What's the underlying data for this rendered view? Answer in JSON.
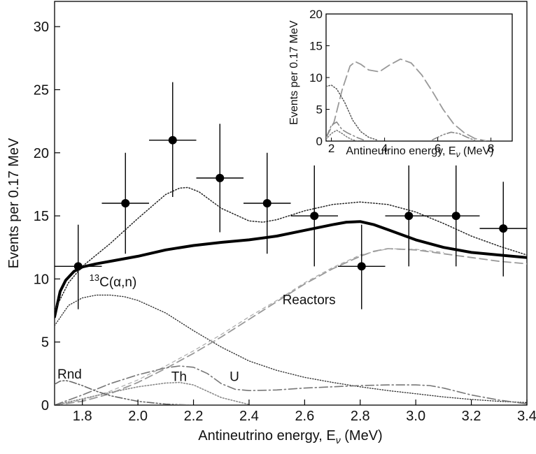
{
  "chart_data": [
    {
      "type": "line",
      "role": "main",
      "xlabel": "Antineutrino energy, E",
      "xlabel_sub": "ν",
      "xlabel_unit": "(MeV)",
      "ylabel": "Events per 0.17 MeV",
      "xlim": [
        1.7,
        3.4
      ],
      "ylim": [
        0,
        32
      ],
      "xticks": [
        "1.8",
        "2.0",
        "2.2",
        "2.4",
        "2.6",
        "2.8",
        "3.0",
        "3.2",
        "3.4"
      ],
      "yticks": [
        "0",
        "5",
        "10",
        "15",
        "20",
        "25",
        "30"
      ],
      "grid": false,
      "annotations": [
        {
          "text": "C(α,n)",
          "sup": "13",
          "x": 1.825,
          "y": 9.4
        },
        {
          "text": "Reactors",
          "x": 2.52,
          "y": 8.0
        },
        {
          "text": "Rnd",
          "x": 1.71,
          "y": 2.1
        },
        {
          "text": "Th",
          "x": 2.12,
          "y": 1.9
        },
        {
          "text": "U",
          "x": 2.33,
          "y": 1.9
        }
      ],
      "data_points": [
        {
          "x": 1.785,
          "y": 11,
          "xerr": 0.085,
          "ylo": 7.6,
          "yhi": 14.3
        },
        {
          "x": 1.955,
          "y": 16,
          "xerr": 0.085,
          "ylo": 12.0,
          "yhi": 20.0
        },
        {
          "x": 2.125,
          "y": 21,
          "xerr": 0.085,
          "ylo": 16.5,
          "yhi": 25.6
        },
        {
          "x": 2.295,
          "y": 18,
          "xerr": 0.085,
          "ylo": 13.7,
          "yhi": 22.3
        },
        {
          "x": 2.465,
          "y": 16,
          "xerr": 0.085,
          "ylo": 12.0,
          "yhi": 20.0
        },
        {
          "x": 2.635,
          "y": 15,
          "xerr": 0.085,
          "ylo": 11.0,
          "yhi": 19.0
        },
        {
          "x": 2.805,
          "y": 11,
          "xerr": 0.085,
          "ylo": 7.6,
          "yhi": 14.3
        },
        {
          "x": 2.975,
          "y": 15,
          "xerr": 0.085,
          "ylo": 11.0,
          "yhi": 19.0
        },
        {
          "x": 3.145,
          "y": 15,
          "xerr": 0.085,
          "ylo": 11.0,
          "yhi": 19.0
        },
        {
          "x": 3.315,
          "y": 14,
          "xerr": 0.085,
          "ylo": 10.2,
          "yhi": 17.7
        }
      ],
      "series": [
        {
          "key": "best_fit",
          "color": "#000000",
          "style": "thick",
          "x": [
            1.7,
            1.72,
            1.74,
            1.77,
            1.8,
            1.85,
            1.9,
            2.0,
            2.1,
            2.2,
            2.3,
            2.4,
            2.5,
            2.6,
            2.7,
            2.75,
            2.8,
            2.85,
            2.9,
            3.0,
            3.1,
            3.2,
            3.3,
            3.4
          ],
          "y": [
            7.0,
            9.0,
            9.9,
            10.6,
            10.95,
            11.2,
            11.4,
            11.8,
            12.3,
            12.65,
            12.9,
            13.1,
            13.4,
            13.85,
            14.3,
            14.5,
            14.55,
            14.3,
            13.9,
            13.1,
            12.5,
            12.1,
            11.9,
            11.7
          ]
        },
        {
          "key": "total_dotted",
          "color": "#222222",
          "style": "dotted",
          "x": [
            1.7,
            1.75,
            1.8,
            1.9,
            2.0,
            2.1,
            2.15,
            2.18,
            2.22,
            2.3,
            2.4,
            2.45,
            2.5,
            2.6,
            2.7,
            2.8,
            2.9,
            3.0,
            3.1,
            3.2,
            3.3,
            3.4
          ],
          "y": [
            7.5,
            9.7,
            11.0,
            12.8,
            14.8,
            16.7,
            17.2,
            17.25,
            16.9,
            15.6,
            14.6,
            14.5,
            14.7,
            15.4,
            15.9,
            16.1,
            15.9,
            15.3,
            14.4,
            13.4,
            12.6,
            11.9
          ]
        },
        {
          "key": "c13",
          "color": "#333333",
          "style": "fine-dotted",
          "x": [
            1.7,
            1.75,
            1.8,
            1.85,
            1.9,
            1.95,
            2.0,
            2.1,
            2.2,
            2.3,
            2.4,
            2.5,
            2.6,
            2.7,
            2.8,
            2.9,
            3.0,
            3.1,
            3.2,
            3.3,
            3.4
          ],
          "y": [
            6.3,
            7.9,
            8.5,
            8.72,
            8.72,
            8.6,
            8.3,
            7.3,
            5.9,
            4.6,
            3.5,
            2.75,
            2.2,
            1.8,
            1.45,
            1.15,
            0.9,
            0.65,
            0.45,
            0.3,
            0.2
          ]
        },
        {
          "key": "reactors",
          "color": "#999999",
          "style": "dashed",
          "x": [
            1.7,
            1.8,
            1.9,
            2.0,
            2.1,
            2.2,
            2.3,
            2.4,
            2.5,
            2.6,
            2.7,
            2.8,
            2.85,
            2.9,
            3.0,
            3.1,
            3.2,
            3.3,
            3.4
          ],
          "y": [
            0.0,
            0.3,
            0.9,
            1.8,
            2.9,
            4.1,
            5.4,
            6.8,
            8.2,
            9.6,
            10.8,
            11.8,
            12.2,
            12.4,
            12.3,
            12.0,
            11.7,
            11.4,
            11.2
          ]
        },
        {
          "key": "reactors_thin",
          "color": "#aaaaaa",
          "style": "dashed-thin",
          "x": [
            1.7,
            1.8,
            1.9,
            2.0,
            2.1,
            2.2,
            2.3,
            2.4,
            2.5,
            2.6,
            2.7,
            2.8,
            2.9,
            3.0,
            3.1
          ],
          "y": [
            0.0,
            0.4,
            1.1,
            2.0,
            3.1,
            4.3,
            5.6,
            7.0,
            8.3,
            9.7,
            10.9,
            11.9,
            12.4,
            12.35,
            12.1
          ]
        },
        {
          "key": "u",
          "color": "#777777",
          "style": "dash-dot",
          "x": [
            1.7,
            1.8,
            1.9,
            2.0,
            2.1,
            2.15,
            2.2,
            2.25,
            2.3,
            2.35,
            2.4,
            2.5,
            2.6,
            2.7,
            2.8,
            2.9,
            3.0,
            3.05,
            3.1,
            3.2,
            3.3,
            3.4
          ],
          "y": [
            0.0,
            0.8,
            1.7,
            2.4,
            2.95,
            3.1,
            3.0,
            2.5,
            1.7,
            1.25,
            1.15,
            1.2,
            1.35,
            1.45,
            1.55,
            1.6,
            1.6,
            1.55,
            1.35,
            0.8,
            0.4,
            0.1
          ]
        },
        {
          "key": "th",
          "color": "#888888",
          "style": "dotted-gray",
          "x": [
            1.7,
            1.8,
            1.9,
            2.0,
            2.1,
            2.15,
            2.2,
            2.3,
            2.4
          ],
          "y": [
            0.0,
            0.5,
            1.0,
            1.45,
            1.75,
            1.8,
            1.6,
            0.6,
            0.05
          ]
        },
        {
          "key": "rnd",
          "color": "#666666",
          "style": "dash-dot-dot",
          "x": [
            1.7,
            1.72,
            1.74,
            1.76,
            1.8,
            1.85,
            1.9,
            2.0,
            2.1,
            2.2
          ],
          "y": [
            1.65,
            1.9,
            1.95,
            1.85,
            1.55,
            1.1,
            0.75,
            0.3,
            0.08,
            0.0
          ]
        }
      ]
    },
    {
      "type": "line",
      "role": "inset",
      "xlabel": "Antineutrino energy, E",
      "xlabel_sub": "ν",
      "xlabel_unit": "(MeV)",
      "ylabel": "Events per 0.17 MeV",
      "xlim": [
        1.8,
        8.8
      ],
      "ylim": [
        0,
        20
      ],
      "xticks": [
        "2",
        "4",
        "6",
        "8"
      ],
      "yticks": [
        "0",
        "5",
        "10",
        "15",
        "20"
      ],
      "series": [
        {
          "key": "reactors_inset",
          "color": "#999999",
          "style": "long-dash",
          "x": [
            1.8,
            2.1,
            2.4,
            2.7,
            2.9,
            3.1,
            3.4,
            3.8,
            4.2,
            4.6,
            5.0,
            5.4,
            5.8,
            6.2,
            6.6,
            7.0,
            7.4,
            7.8
          ],
          "y": [
            0.5,
            3.0,
            8.0,
            11.8,
            12.5,
            12.1,
            11.2,
            10.9,
            12.0,
            12.9,
            12.3,
            10.4,
            7.8,
            5.0,
            2.7,
            1.3,
            0.4,
            0.05
          ]
        },
        {
          "key": "c13_inset",
          "color": "#555555",
          "style": "dotted",
          "x": [
            1.8,
            2.0,
            2.2,
            2.5,
            2.8,
            3.1,
            3.4,
            3.7
          ],
          "y": [
            8.6,
            8.8,
            8.2,
            6.1,
            3.3,
            1.5,
            0.6,
            0.2
          ]
        },
        {
          "key": "aux_inset_1",
          "color": "#888888",
          "style": "dash-dot",
          "x": [
            1.8,
            2.0,
            2.2,
            2.4,
            2.6,
            2.8,
            3.0,
            3.2
          ],
          "y": [
            0.5,
            2.5,
            3.0,
            1.8,
            1.3,
            0.9,
            0.5,
            0.2
          ]
        },
        {
          "key": "aux_inset_2",
          "color": "#777777",
          "style": "dotted",
          "x": [
            1.8,
            2.0,
            2.2,
            2.4,
            2.6,
            2.8,
            3.0
          ],
          "y": [
            0.3,
            1.2,
            1.7,
            1.2,
            0.6,
            0.2,
            0.0
          ]
        },
        {
          "key": "aux_inset_3",
          "color": "#888888",
          "style": "dash-dot-dot",
          "x": [
            5.8,
            6.2,
            6.5,
            6.8,
            7.1,
            7.4
          ],
          "y": [
            0.2,
            1.0,
            1.4,
            1.2,
            0.6,
            0.1
          ]
        }
      ]
    }
  ]
}
